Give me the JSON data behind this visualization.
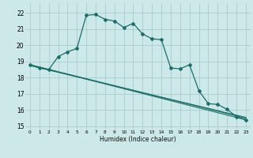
{
  "xlabel": "Humidex (Indice chaleur)",
  "bg_color": "#cce8e8",
  "grid_color": "#aacccc",
  "line_color": "#1a6e6a",
  "xlim": [
    -0.5,
    23.5
  ],
  "ylim": [
    14.8,
    22.6
  ],
  "yticks": [
    15,
    16,
    17,
    18,
    19,
    20,
    21,
    22
  ],
  "xticks": [
    0,
    1,
    2,
    3,
    4,
    5,
    6,
    7,
    8,
    9,
    10,
    11,
    12,
    13,
    14,
    15,
    16,
    17,
    18,
    19,
    20,
    21,
    22,
    23
  ],
  "series1_x": [
    0,
    1,
    2,
    3,
    4,
    5,
    6,
    7,
    8,
    9,
    10,
    11,
    12,
    13,
    14,
    15,
    16,
    17,
    18,
    19,
    20,
    21,
    22,
    23
  ],
  "series1_y": [
    18.8,
    18.6,
    18.5,
    19.3,
    19.6,
    19.8,
    21.85,
    21.9,
    21.6,
    21.5,
    21.1,
    21.35,
    20.7,
    20.4,
    20.35,
    18.6,
    18.55,
    18.8,
    17.2,
    16.4,
    16.35,
    16.05,
    15.6,
    15.4
  ],
  "line2_x": [
    0,
    23
  ],
  "line2_y": [
    18.8,
    15.4
  ],
  "line3_x": [
    0,
    23
  ],
  "line3_y": [
    18.8,
    15.5
  ],
  "line4_x": [
    0,
    23
  ],
  "line4_y": [
    18.75,
    15.55
  ]
}
